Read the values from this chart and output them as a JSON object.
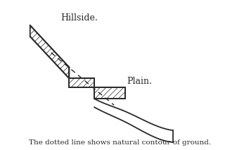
{
  "caption": "The dotted line shows natural contour of ground.",
  "label_hillside": "Hillside.",
  "label_plain": "Plain.",
  "bg_color": "#ffffff",
  "line_color": "#2a2a2a",
  "figsize": [
    3.37,
    2.13
  ],
  "dpi": 100,
  "hatch": "////",
  "hatch_lw": 0.5,
  "terrain_lw": 1.3
}
